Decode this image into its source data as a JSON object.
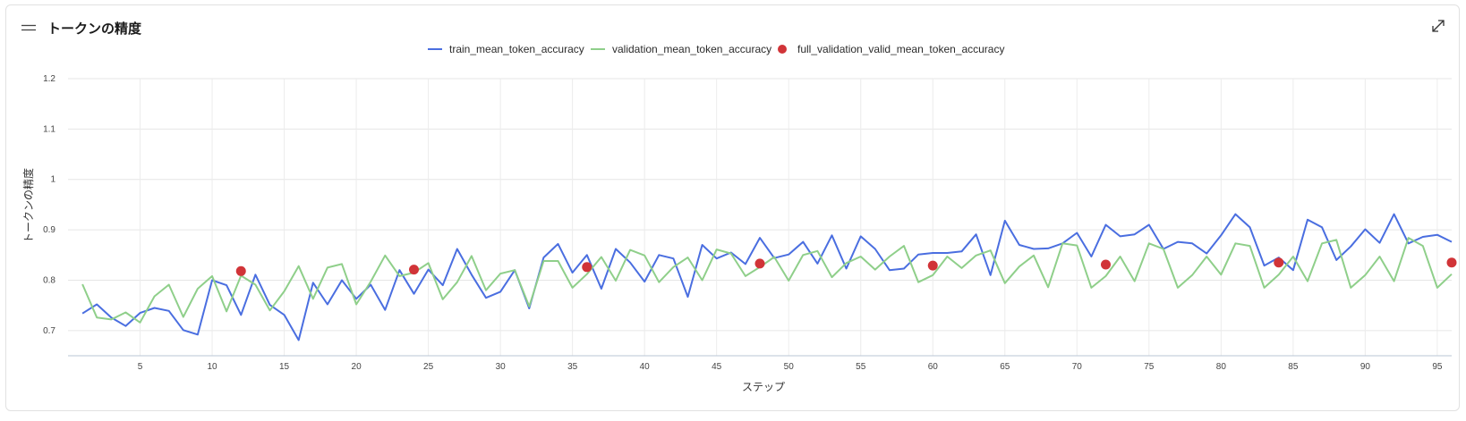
{
  "header": {
    "title": "トークンの精度",
    "menu_icon": "hamburger-icon",
    "expand_icon": "expand-diagonal-icon"
  },
  "chart_data": {
    "type": "line",
    "title": "トークンの精度",
    "xlabel": "ステップ",
    "ylabel": "トークンの精度",
    "xlim": [
      0,
      96
    ],
    "ylim": [
      0.65,
      1.2
    ],
    "x_ticks": [
      5,
      10,
      15,
      20,
      25,
      30,
      35,
      40,
      45,
      50,
      55,
      60,
      65,
      70,
      75,
      80,
      85,
      90,
      95
    ],
    "y_ticks": [
      0.7,
      0.8,
      0.9,
      1,
      1.1,
      1.2
    ],
    "y_tick_labels": [
      "0.7",
      "0.8",
      "0.9",
      "1",
      "1.1",
      "1.2"
    ],
    "grid": true,
    "legend_position": "top-center",
    "series": [
      {
        "name": "train_mean_token_accuracy",
        "kind": "line",
        "color": "#4a6ee0",
        "x": [
          1,
          2,
          3,
          4,
          5,
          6,
          7,
          8,
          9,
          10,
          11,
          12,
          13,
          14,
          15,
          16,
          17,
          18,
          19,
          20,
          21,
          22,
          23,
          24,
          25,
          26,
          27,
          28,
          29,
          30,
          31,
          32,
          33,
          34,
          35,
          36,
          37,
          38,
          39,
          40,
          41,
          42,
          43,
          44,
          45,
          46,
          47,
          48,
          49,
          50,
          51,
          52,
          53,
          54,
          55,
          56,
          57,
          58,
          59,
          60,
          61,
          62,
          63,
          64,
          65,
          66,
          67,
          68,
          69,
          70,
          71,
          72,
          73,
          74,
          75,
          76,
          77,
          78,
          79,
          80,
          81,
          82,
          83,
          84,
          85,
          86,
          87,
          88,
          89,
          90,
          91,
          92,
          93,
          94,
          95,
          96
        ],
        "y": [
          0.734,
          0.752,
          0.726,
          0.709,
          0.735,
          0.745,
          0.739,
          0.701,
          0.692,
          0.8,
          0.79,
          0.731,
          0.811,
          0.751,
          0.731,
          0.681,
          0.795,
          0.752,
          0.8,
          0.763,
          0.791,
          0.741,
          0.82,
          0.773,
          0.821,
          0.79,
          0.862,
          0.811,
          0.765,
          0.777,
          0.82,
          0.744,
          0.845,
          0.872,
          0.815,
          0.85,
          0.783,
          0.862,
          0.835,
          0.797,
          0.85,
          0.843,
          0.767,
          0.87,
          0.843,
          0.855,
          0.832,
          0.884,
          0.844,
          0.851,
          0.876,
          0.833,
          0.889,
          0.823,
          0.887,
          0.862,
          0.82,
          0.823,
          0.851,
          0.854,
          0.854,
          0.857,
          0.891,
          0.81,
          0.918,
          0.87,
          0.862,
          0.863,
          0.873,
          0.894,
          0.847,
          0.91,
          0.887,
          0.891,
          0.91,
          0.862,
          0.876,
          0.873,
          0.853,
          0.889,
          0.931,
          0.905,
          0.829,
          0.845,
          0.82,
          0.92,
          0.905,
          0.84,
          0.867,
          0.901,
          0.874,
          0.931,
          0.873,
          0.886,
          0.89,
          0.876
        ]
      },
      {
        "name": "validation_mean_token_accuracy",
        "kind": "line",
        "color": "#8fcf8a",
        "x": [
          1,
          2,
          3,
          4,
          5,
          6,
          7,
          8,
          9,
          10,
          11,
          12,
          13,
          14,
          15,
          16,
          17,
          18,
          19,
          20,
          21,
          22,
          23,
          24,
          25,
          26,
          27,
          28,
          29,
          30,
          31,
          32,
          33,
          34,
          35,
          36,
          37,
          38,
          39,
          40,
          41,
          42,
          43,
          44,
          45,
          46,
          47,
          48,
          49,
          50,
          51,
          52,
          53,
          54,
          55,
          56,
          57,
          58,
          59,
          60,
          61,
          62,
          63,
          64,
          65,
          66,
          67,
          68,
          69,
          70,
          71,
          72,
          73,
          74,
          75,
          76,
          77,
          78,
          79,
          80,
          81,
          82,
          83,
          84,
          85,
          86,
          87,
          88,
          89,
          90,
          91,
          92,
          93,
          94,
          95,
          96
        ],
        "y": [
          0.792,
          0.726,
          0.722,
          0.736,
          0.716,
          0.768,
          0.791,
          0.727,
          0.783,
          0.808,
          0.738,
          0.809,
          0.791,
          0.74,
          0.778,
          0.828,
          0.763,
          0.825,
          0.832,
          0.752,
          0.797,
          0.849,
          0.808,
          0.815,
          0.834,
          0.762,
          0.796,
          0.848,
          0.78,
          0.813,
          0.82,
          0.748,
          0.838,
          0.838,
          0.785,
          0.812,
          0.846,
          0.799,
          0.86,
          0.849,
          0.796,
          0.826,
          0.845,
          0.8,
          0.861,
          0.853,
          0.808,
          0.826,
          0.846,
          0.799,
          0.85,
          0.858,
          0.806,
          0.834,
          0.847,
          0.821,
          0.847,
          0.868,
          0.796,
          0.81,
          0.847,
          0.824,
          0.849,
          0.859,
          0.794,
          0.827,
          0.849,
          0.786,
          0.873,
          0.869,
          0.785,
          0.808,
          0.847,
          0.798,
          0.873,
          0.862,
          0.785,
          0.81,
          0.847,
          0.811,
          0.873,
          0.868,
          0.785,
          0.811,
          0.847,
          0.798,
          0.873,
          0.88,
          0.785,
          0.81,
          0.847,
          0.798,
          0.884,
          0.868,
          0.785,
          0.812
        ]
      },
      {
        "name": "full_validation_valid_mean_token_accuracy",
        "kind": "points",
        "color": "#d13438",
        "x": [
          12,
          24,
          36,
          48,
          60,
          72,
          84,
          96
        ],
        "y": [
          0.818,
          0.821,
          0.826,
          0.833,
          0.829,
          0.831,
          0.835,
          0.835
        ]
      }
    ]
  }
}
